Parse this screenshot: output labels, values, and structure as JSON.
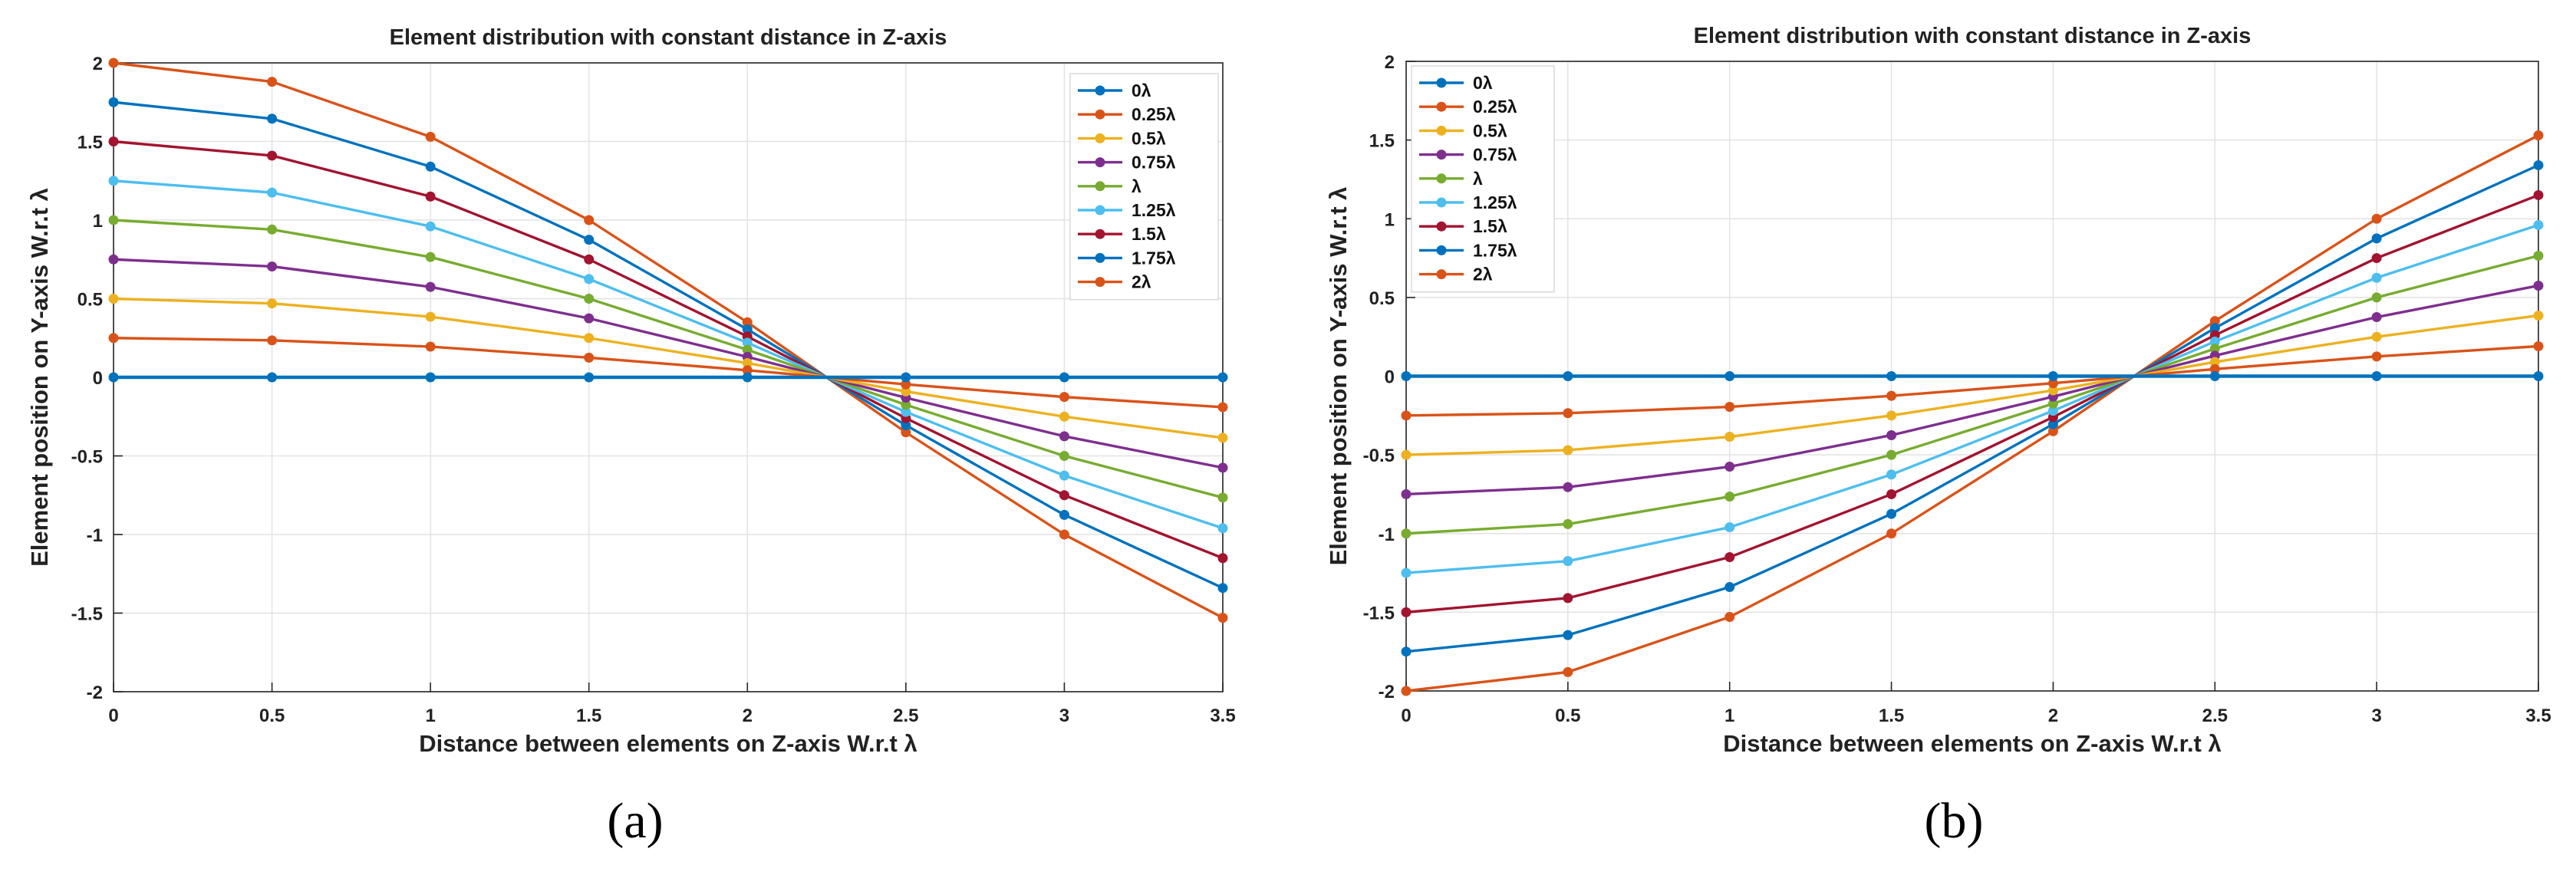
{
  "figure": {
    "panel_labels": [
      "(a)",
      "(b)"
    ]
  },
  "colors": [
    "#0072BD",
    "#D95319",
    "#EDB120",
    "#7E2F8E",
    "#77AC30",
    "#4DBEEE",
    "#A2142F",
    "#0072BD",
    "#D95319"
  ],
  "chart_data": [
    {
      "type": "line",
      "title": "Element distribution with constant distance in Z-axis",
      "xlabel": "Distance between elements on Z-axis W.r.t λ",
      "ylabel": "Element position on Y-axis W.r.t λ",
      "xlim": [
        0,
        3.5
      ],
      "ylim": [
        -2,
        2
      ],
      "xticks": [
        0,
        0.5,
        1,
        1.5,
        2,
        2.5,
        3,
        3.5
      ],
      "xtick_labels": [
        "0",
        "0.5",
        "1",
        "1.5",
        "2",
        "2.5",
        "3",
        "3.5"
      ],
      "yticks": [
        -2,
        -1.5,
        -1,
        -0.5,
        0,
        0.5,
        1,
        1.5,
        2
      ],
      "ytick_labels": [
        "-2",
        "-1.5",
        "-1",
        "-0.5",
        "0",
        "0.5",
        "1",
        "1.5",
        "2"
      ],
      "grid": true,
      "legend_position": "top-right",
      "x": [
        0,
        0.5,
        1,
        1.5,
        2,
        2.5,
        3,
        3.5
      ],
      "series": [
        {
          "name": "0λ",
          "values": [
            0,
            0,
            0,
            0,
            0,
            0,
            0,
            0
          ]
        },
        {
          "name": "0.25λ",
          "values": [
            0.25,
            0.235,
            0.195,
            0.125,
            0.045,
            -0.045,
            -0.125,
            -0.19
          ]
        },
        {
          "name": "0.5λ",
          "values": [
            0.5,
            0.47,
            0.385,
            0.25,
            0.09,
            -0.09,
            -0.25,
            -0.385
          ]
        },
        {
          "name": "0.75λ",
          "values": [
            0.75,
            0.705,
            0.575,
            0.375,
            0.13,
            -0.13,
            -0.375,
            -0.575
          ]
        },
        {
          "name": "λ",
          "values": [
            1,
            0.94,
            0.765,
            0.5,
            0.175,
            -0.175,
            -0.5,
            -0.765
          ]
        },
        {
          "name": "1.25λ",
          "values": [
            1.25,
            1.175,
            0.96,
            0.625,
            0.22,
            -0.22,
            -0.625,
            -0.96
          ]
        },
        {
          "name": "1.5λ",
          "values": [
            1.5,
            1.41,
            1.15,
            0.75,
            0.26,
            -0.26,
            -0.75,
            -1.15
          ]
        },
        {
          "name": "1.75λ",
          "values": [
            1.75,
            1.645,
            1.34,
            0.875,
            0.305,
            -0.305,
            -0.875,
            -1.34
          ]
        },
        {
          "name": "2λ",
          "values": [
            2,
            1.88,
            1.53,
            1.0,
            0.35,
            -0.35,
            -1.0,
            -1.53
          ]
        }
      ]
    },
    {
      "type": "line",
      "title": "Element distribution with constant distance in Z-axis",
      "xlabel": "Distance between elements on Z-axis W.r.t λ",
      "ylabel": "Element position on Y-axis W.r.t λ",
      "xlim": [
        0,
        3.5
      ],
      "ylim": [
        -2,
        2
      ],
      "xticks": [
        0,
        0.5,
        1,
        1.5,
        2,
        2.5,
        3,
        3.5
      ],
      "xtick_labels": [
        "0",
        "0.5",
        "1",
        "1.5",
        "2",
        "2.5",
        "3",
        "3.5"
      ],
      "yticks": [
        -2,
        -1.5,
        -1,
        -0.5,
        0,
        0.5,
        1,
        1.5,
        2
      ],
      "ytick_labels": [
        "-2",
        "-1.5",
        "-1",
        "-0.5",
        "0",
        "0.5",
        "1",
        "1.5",
        "2"
      ],
      "grid": true,
      "legend_position": "top-left",
      "x": [
        0,
        0.5,
        1,
        1.5,
        2,
        2.5,
        3,
        3.5
      ],
      "series": [
        {
          "name": "0λ",
          "values": [
            0,
            0,
            0,
            0,
            0,
            0,
            0,
            0
          ]
        },
        {
          "name": "0.25λ",
          "values": [
            -0.25,
            -0.235,
            -0.195,
            -0.125,
            -0.045,
            0.045,
            0.125,
            0.19
          ]
        },
        {
          "name": "0.5λ",
          "values": [
            -0.5,
            -0.47,
            -0.385,
            -0.25,
            -0.09,
            0.09,
            0.25,
            0.385
          ]
        },
        {
          "name": "0.75λ",
          "values": [
            -0.75,
            -0.705,
            -0.575,
            -0.375,
            -0.13,
            0.13,
            0.375,
            0.575
          ]
        },
        {
          "name": "λ",
          "values": [
            -1,
            -0.94,
            -0.765,
            -0.5,
            -0.175,
            0.175,
            0.5,
            0.765
          ]
        },
        {
          "name": "1.25λ",
          "values": [
            -1.25,
            -1.175,
            -0.96,
            -0.625,
            -0.22,
            0.22,
            0.625,
            0.96
          ]
        },
        {
          "name": "1.5λ",
          "values": [
            -1.5,
            -1.41,
            -1.15,
            -0.75,
            -0.26,
            0.26,
            0.75,
            1.15
          ]
        },
        {
          "name": "1.75λ",
          "values": [
            -1.75,
            -1.645,
            -1.34,
            -0.875,
            -0.305,
            0.305,
            0.875,
            1.34
          ]
        },
        {
          "name": "2λ",
          "values": [
            -2,
            -1.88,
            -1.53,
            -1.0,
            -0.35,
            0.35,
            1.0,
            1.53
          ]
        }
      ]
    }
  ]
}
